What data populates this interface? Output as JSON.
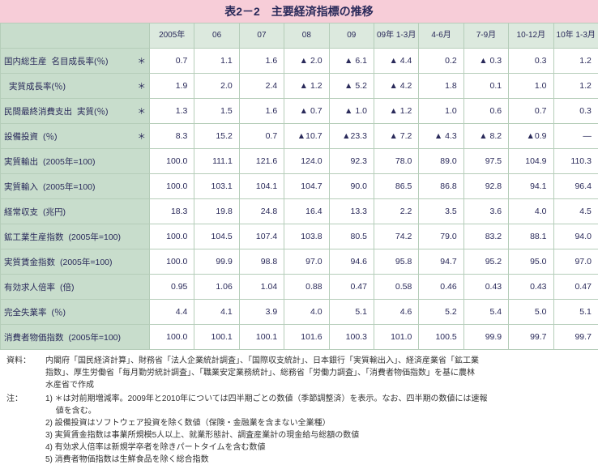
{
  "title": "表2－2　主要経済指標の推移",
  "columns": [
    "2005年",
    "06",
    "07",
    "08",
    "09",
    "09年\n1-3月",
    "4-6月",
    "7-9月",
    "10-12月",
    "10年\n1-3月"
  ],
  "rows": [
    {
      "main": "国内総生産",
      "sub": "名目成長率(％)",
      "star": "＊",
      "values": [
        "0.7",
        "1.1",
        "1.6",
        "▲ 2.0",
        "▲ 6.1",
        "▲ 4.4",
        "0.2",
        "▲ 0.3",
        "0.3",
        "1.2"
      ]
    },
    {
      "main": "",
      "sub": "実質成長率(％)",
      "star": "＊",
      "values": [
        "1.9",
        "2.0",
        "2.4",
        "▲ 1.2",
        "▲ 5.2",
        "▲ 4.2",
        "1.8",
        "0.1",
        "1.0",
        "1.2"
      ]
    },
    {
      "main": "民間最終消費支出",
      "sub": "実質(％)",
      "star": "＊",
      "values": [
        "1.3",
        "1.5",
        "1.6",
        "▲ 0.7",
        "▲ 1.0",
        "▲ 1.2",
        "1.0",
        "0.6",
        "0.7",
        "0.3"
      ]
    },
    {
      "main": "設備投資",
      "sub": "(％)",
      "star": "＊",
      "values": [
        "8.3",
        "15.2",
        "0.7",
        "▲10.7",
        "▲23.3",
        "▲ 7.2",
        "▲ 4.3",
        "▲ 8.2",
        "▲0.9",
        "―"
      ]
    },
    {
      "main": "実質輸出",
      "sub": "(2005年=100)",
      "star": "",
      "values": [
        "100.0",
        "111.1",
        "121.6",
        "124.0",
        "92.3",
        "78.0",
        "89.0",
        "97.5",
        "104.9",
        "110.3"
      ]
    },
    {
      "main": "実質輸入",
      "sub": "(2005年=100)",
      "star": "",
      "values": [
        "100.0",
        "103.1",
        "104.1",
        "104.7",
        "90.0",
        "86.5",
        "86.8",
        "92.8",
        "94.1",
        "96.4"
      ]
    },
    {
      "main": "経常収支",
      "sub": "(兆円)",
      "star": "",
      "values": [
        "18.3",
        "19.8",
        "24.8",
        "16.4",
        "13.3",
        "2.2",
        "3.5",
        "3.6",
        "4.0",
        "4.5"
      ]
    },
    {
      "main": "鉱工業生産指数",
      "sub": "(2005年=100)",
      "star": "",
      "values": [
        "100.0",
        "104.5",
        "107.4",
        "103.8",
        "80.5",
        "74.2",
        "79.0",
        "83.2",
        "88.1",
        "94.0"
      ]
    },
    {
      "main": "実質賃金指数",
      "sub": "(2005年=100)",
      "star": "",
      "values": [
        "100.0",
        "99.9",
        "98.8",
        "97.0",
        "94.6",
        "95.8",
        "94.7",
        "95.2",
        "95.0",
        "97.0"
      ]
    },
    {
      "main": "有効求人倍率",
      "sub": "(倍)",
      "star": "",
      "values": [
        "0.95",
        "1.06",
        "1.04",
        "0.88",
        "0.47",
        "0.58",
        "0.46",
        "0.43",
        "0.43",
        "0.47"
      ]
    },
    {
      "main": "完全失業率",
      "sub": "(％)",
      "star": "",
      "values": [
        "4.4",
        "4.1",
        "3.9",
        "4.0",
        "5.1",
        "4.6",
        "5.2",
        "5.4",
        "5.0",
        "5.1"
      ]
    },
    {
      "main": "消費者物価指数",
      "sub": "(2005年=100)",
      "star": "",
      "values": [
        "100.0",
        "100.1",
        "100.1",
        "101.6",
        "100.3",
        "101.0",
        "100.5",
        "99.9",
        "99.7",
        "99.7"
      ]
    }
  ],
  "source": {
    "label": "資料：",
    "text1": "内閣府「国民経済計算」、財務省「法人企業統計調査」、「国際収支統計」、日本銀行「実質輸出入」、経済産業省「鉱工業",
    "text2": "指数」、厚生労働省「毎月勤労統計調査」、「職業安定業務統計」、総務省「労働力調査」、「消費者物価指数」を基に農林",
    "text3": "水産省で作成"
  },
  "notes": {
    "label": "注：",
    "items": [
      "1) ＊は対前期増減率。2009年と2010年については四半期ごとの数値（季節調整済）を表示。なお、四半期の数値には速報",
      "　 値を含む。",
      "2) 設備投資はソフトウェア投資を除く数値（保険・金融業を含まない全業種）",
      "3) 実質賃金指数は事業所規模5人以上、就業形態計、調査産業計の現金給与総額の数値",
      "4) 有効求人倍率は新規学卒者を除きパートタイムを含む数値",
      "5) 消費者物価指数は生鮮食品を除く総合指数"
    ]
  }
}
